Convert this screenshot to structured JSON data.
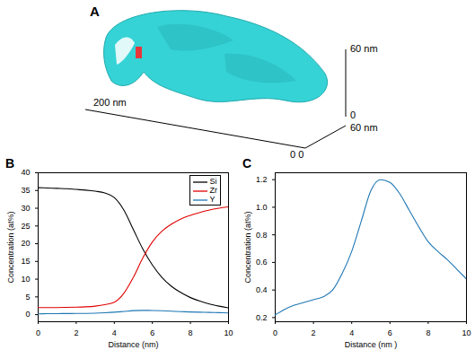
{
  "chart_data": [
    {
      "type": "line",
      "title": "B",
      "x_label": "Distance (nm)",
      "y_label": "Concentration (at%)",
      "x": [
        0,
        0.5,
        1,
        1.5,
        2,
        2.5,
        3,
        3.5,
        4,
        4.5,
        5,
        5.5,
        6,
        6.5,
        7,
        7.5,
        8,
        8.5,
        9,
        9.5,
        10
      ],
      "series": [
        {
          "name": "Si",
          "color": "#000000",
          "values": [
            35.8,
            35.7,
            35.6,
            35.5,
            35.3,
            35.1,
            34.8,
            34.3,
            33,
            29.5,
            24,
            18.5,
            14,
            10.5,
            8,
            6.2,
            4.8,
            3.8,
            3,
            2.4,
            1.9
          ]
        },
        {
          "name": "Zr",
          "color": "#e00000",
          "values": [
            2,
            2,
            2,
            2.05,
            2.1,
            2.2,
            2.4,
            2.8,
            3.5,
            6,
            10.5,
            16,
            20.5,
            23.5,
            25.5,
            27,
            28,
            28.8,
            29.5,
            30,
            30.4
          ]
        },
        {
          "name": "Y",
          "color": "#1f77b4",
          "values": [
            0.22,
            0.26,
            0.29,
            0.31,
            0.33,
            0.35,
            0.4,
            0.52,
            0.68,
            0.9,
            1.12,
            1.2,
            1.18,
            1.1,
            0.98,
            0.86,
            0.75,
            0.68,
            0.62,
            0.55,
            0.48
          ]
        }
      ],
      "xlim": [
        0,
        10
      ],
      "xticks": [
        0,
        2,
        4,
        6,
        8,
        10
      ],
      "ylim": [
        -2,
        40
      ],
      "yticks": [
        0,
        5,
        10,
        15,
        20,
        25,
        30,
        35,
        40
      ],
      "legend": "top-right"
    },
    {
      "type": "line",
      "title": "C",
      "x_label": "Distance (nm )",
      "y_label": "Concentration (at%)",
      "x": [
        0,
        0.5,
        1,
        1.5,
        2,
        2.5,
        3,
        3.5,
        4,
        4.5,
        5,
        5.5,
        6,
        6.5,
        7,
        7.5,
        8,
        8.5,
        9,
        9.5,
        10
      ],
      "series": [
        {
          "name": "Y",
          "color": "#1f77b4",
          "values": [
            0.22,
            0.26,
            0.29,
            0.31,
            0.33,
            0.35,
            0.4,
            0.52,
            0.68,
            0.9,
            1.12,
            1.2,
            1.18,
            1.1,
            0.98,
            0.86,
            0.75,
            0.68,
            0.62,
            0.55,
            0.48
          ]
        }
      ],
      "xlim": [
        0,
        10
      ],
      "xticks": [
        0,
        2,
        4,
        6,
        8,
        10
      ],
      "ylim": [
        0.17,
        1.25
      ],
      "yticks": [
        0.2,
        0.4,
        0.6,
        0.8,
        {
          "value": 1,
          "label": "1.0"
        },
        1.2
      ],
      "legend": "top-right"
    }
  ],
  "panel_a": {
    "label": "A",
    "x_axis_label": "200 nm",
    "y_axis_label": "60 nm",
    "z_axis_label": "60 nm",
    "origin_labels": [
      "0",
      "0 0"
    ]
  }
}
